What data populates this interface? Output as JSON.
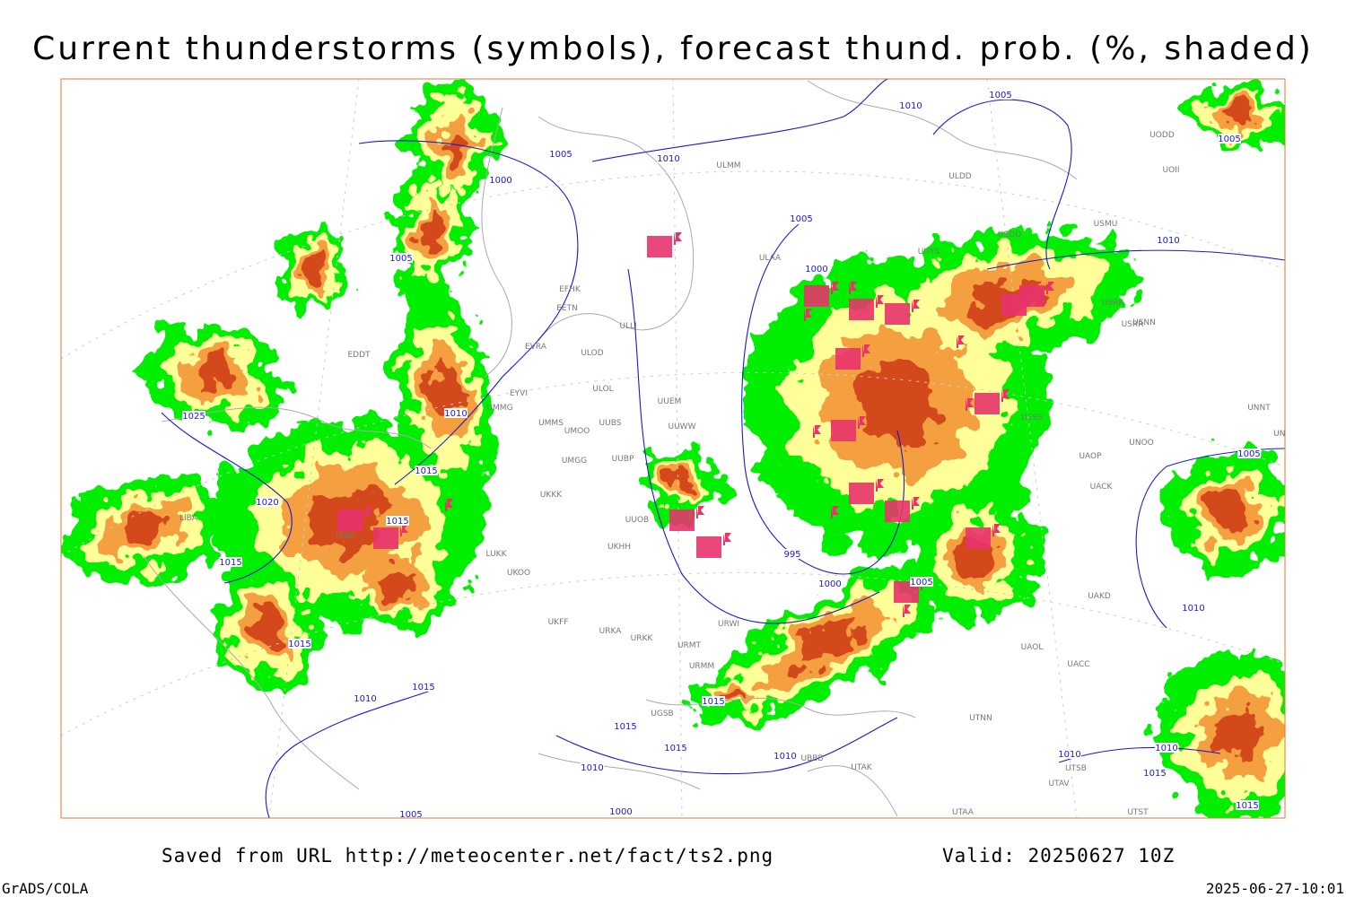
{
  "header": {
    "title": "Current thunderstorms (symbols), forecast thund. prob. (%, shaded)"
  },
  "footer": {
    "source": "Saved from URL http://meteocenter.net/fact/ts2.png",
    "valid": "Valid: 20250627 10Z",
    "software": "GrADS/COLA",
    "timestamp": "2025-06-27-10:01"
  },
  "isobar_labels": [
    "1005",
    "1010",
    "1005",
    "1005",
    "1010",
    "1000",
    "1005",
    "1010",
    "1005",
    "1000",
    "1010",
    "1025",
    "1005",
    "1015",
    "1020",
    "1015",
    "1015",
    "995",
    "1000",
    "1005",
    "1010",
    "1015",
    "1015",
    "1010",
    "1015",
    "1015",
    "1015",
    "1010",
    "1010",
    "1010",
    "1010",
    "1015",
    "1005",
    "1000",
    "1015"
  ],
  "stations": [
    "ULMM",
    "ULDD",
    "UODD",
    "UOII",
    "USMU",
    "USDD",
    "UUYS",
    "ULAA",
    "EFHK",
    "EETN",
    "ULLI",
    "EVRA",
    "ULOD",
    "ULOL",
    "EYVI",
    "UMMG",
    "UUEM",
    "UMMS",
    "UMOO",
    "UUBS",
    "UUWW",
    "UMGG",
    "UUBP",
    "UKKK",
    "UUOB",
    "LUKK",
    "UKOO",
    "UKHH",
    "UKFF",
    "URKA",
    "URKK",
    "URMT",
    "URMM",
    "URWI",
    "UGSB",
    "UBBB",
    "UTAK",
    "UTNN",
    "UAOL",
    "UACC",
    "UAKD",
    "UNOO",
    "UNBB",
    "UNNT",
    "UACK",
    "UAOP",
    "USSS",
    "USRK",
    "USRR",
    "USNN",
    "LYBE",
    "EDDT",
    "LIBA",
    "UTAA",
    "UTSB",
    "UTAV",
    "UTST"
  ]
}
